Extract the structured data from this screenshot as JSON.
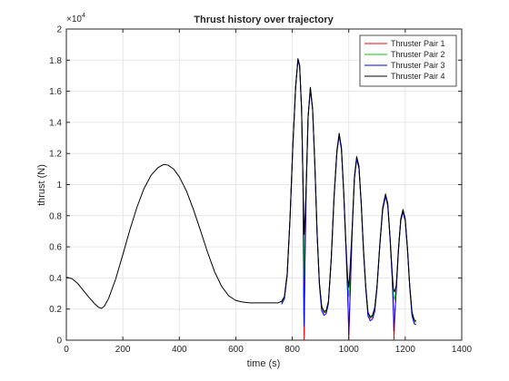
{
  "chart_data": {
    "type": "line",
    "title": "Thrust history over trajectory",
    "xlabel": "time (s)",
    "ylabel": "thrust (N)",
    "y_exponent_label": "×10",
    "y_exponent_power": "4",
    "xlim": [
      0,
      1400
    ],
    "ylim": [
      0,
      20000
    ],
    "x_ticks": [
      0,
      200,
      400,
      600,
      800,
      1000,
      1200,
      1400
    ],
    "x_tick_labels": [
      "0",
      "200",
      "400",
      "600",
      "800",
      "1000",
      "1200",
      "1400"
    ],
    "y_ticks": [
      0,
      2000,
      4000,
      6000,
      8000,
      10000,
      12000,
      14000,
      16000,
      18000,
      20000
    ],
    "y_tick_labels": [
      "0",
      "0.2",
      "0.4",
      "0.6",
      "0.8",
      "1",
      "1.2",
      "1.4",
      "1.6",
      "1.8",
      "2"
    ],
    "grid": true,
    "legend_position": "top-right",
    "series": [
      {
        "name": "Thruster Pair 1",
        "color": "#ff0000",
        "points": [
          [
            762,
            2400
          ],
          [
            772,
            2700
          ],
          [
            782,
            4200
          ],
          [
            792,
            7800
          ],
          [
            802,
            12500
          ],
          [
            812,
            16300
          ],
          [
            820,
            18000
          ],
          [
            826,
            17600
          ],
          [
            833,
            14800
          ],
          [
            838,
            10000
          ],
          [
            840,
            5000
          ],
          [
            841,
            1600
          ],
          [
            842,
            0
          ],
          [
            843,
            1600
          ],
          [
            845,
            5000
          ],
          [
            849,
            9500
          ],
          [
            856,
            14300
          ],
          [
            864,
            16200
          ],
          [
            872,
            14800
          ],
          [
            880,
            11200
          ],
          [
            888,
            6800
          ],
          [
            896,
            3600
          ],
          [
            904,
            2100
          ],
          [
            912,
            1750
          ],
          [
            920,
            1800
          ],
          [
            928,
            2400
          ],
          [
            938,
            5200
          ],
          [
            948,
            9200
          ],
          [
            958,
            12100
          ],
          [
            966,
            13200
          ],
          [
            974,
            12300
          ],
          [
            982,
            9500
          ],
          [
            990,
            6000
          ],
          [
            996,
            3200
          ],
          [
            999,
            1200
          ],
          [
            1000,
            0
          ],
          [
            1002,
            1200
          ],
          [
            1006,
            3600
          ],
          [
            1012,
            7000
          ],
          [
            1020,
            10400
          ],
          [
            1028,
            11700
          ],
          [
            1036,
            11100
          ],
          [
            1044,
            8800
          ],
          [
            1052,
            5800
          ],
          [
            1060,
            3400
          ],
          [
            1068,
            1700
          ],
          [
            1076,
            1400
          ],
          [
            1084,
            1500
          ],
          [
            1092,
            2000
          ],
          [
            1100,
            3400
          ],
          [
            1110,
            6100
          ],
          [
            1120,
            8400
          ],
          [
            1130,
            9300
          ],
          [
            1138,
            8700
          ],
          [
            1146,
            6600
          ],
          [
            1154,
            4000
          ],
          [
            1158,
            2000
          ],
          [
            1160,
            0
          ],
          [
            1163,
            1600
          ],
          [
            1168,
            3200
          ],
          [
            1176,
            5800
          ],
          [
            1184,
            7700
          ],
          [
            1192,
            8300
          ],
          [
            1200,
            7700
          ],
          [
            1208,
            5800
          ],
          [
            1216,
            3400
          ],
          [
            1224,
            1700
          ],
          [
            1232,
            1200
          ],
          [
            1238,
            1150
          ]
        ]
      },
      {
        "name": "Thruster Pair 2",
        "color": "#00cc00",
        "points": [
          [
            762,
            2450
          ],
          [
            772,
            2750
          ],
          [
            782,
            4250
          ],
          [
            792,
            7850
          ],
          [
            802,
            12500
          ],
          [
            812,
            16300
          ],
          [
            820,
            18050
          ],
          [
            826,
            17650
          ],
          [
            833,
            14850
          ],
          [
            838,
            10100
          ],
          [
            840,
            6000
          ],
          [
            842,
            4000
          ],
          [
            844,
            6500
          ],
          [
            849,
            9600
          ],
          [
            856,
            14350
          ],
          [
            864,
            16200
          ],
          [
            872,
            14850
          ],
          [
            880,
            11250
          ],
          [
            888,
            6850
          ],
          [
            896,
            3650
          ],
          [
            904,
            2150
          ],
          [
            912,
            1800
          ],
          [
            920,
            1850
          ],
          [
            928,
            2450
          ],
          [
            938,
            5250
          ],
          [
            948,
            9250
          ],
          [
            958,
            12150
          ],
          [
            966,
            13250
          ],
          [
            974,
            12350
          ],
          [
            982,
            9550
          ],
          [
            990,
            6100
          ],
          [
            996,
            3600
          ],
          [
            1000,
            2800
          ],
          [
            1004,
            3900
          ],
          [
            1012,
            7100
          ],
          [
            1020,
            10450
          ],
          [
            1028,
            11750
          ],
          [
            1036,
            11150
          ],
          [
            1044,
            8850
          ],
          [
            1052,
            5850
          ],
          [
            1060,
            3450
          ],
          [
            1068,
            1750
          ],
          [
            1076,
            1450
          ],
          [
            1084,
            1550
          ],
          [
            1092,
            2050
          ],
          [
            1100,
            3450
          ],
          [
            1110,
            6150
          ],
          [
            1120,
            8450
          ],
          [
            1130,
            9350
          ],
          [
            1138,
            8750
          ],
          [
            1146,
            6650
          ],
          [
            1154,
            4100
          ],
          [
            1158,
            2900
          ],
          [
            1162,
            2600
          ],
          [
            1168,
            3300
          ],
          [
            1176,
            5850
          ],
          [
            1184,
            7750
          ],
          [
            1192,
            8350
          ],
          [
            1200,
            7750
          ],
          [
            1208,
            5850
          ],
          [
            1216,
            3450
          ],
          [
            1224,
            1750
          ],
          [
            1232,
            1250
          ],
          [
            1238,
            1200
          ]
        ]
      },
      {
        "name": "Thruster Pair 3",
        "color": "#0000ff",
        "points": [
          [
            762,
            2300
          ],
          [
            772,
            2650
          ],
          [
            782,
            4150
          ],
          [
            792,
            7750
          ],
          [
            802,
            12450
          ],
          [
            812,
            16250
          ],
          [
            820,
            18000
          ],
          [
            826,
            17600
          ],
          [
            833,
            14800
          ],
          [
            838,
            9900
          ],
          [
            840,
            4500
          ],
          [
            841,
            2000
          ],
          [
            842,
            900
          ],
          [
            843,
            2200
          ],
          [
            845,
            5200
          ],
          [
            849,
            9500
          ],
          [
            856,
            14300
          ],
          [
            864,
            16150
          ],
          [
            872,
            14800
          ],
          [
            880,
            11150
          ],
          [
            888,
            6750
          ],
          [
            896,
            3550
          ],
          [
            904,
            1900
          ],
          [
            912,
            1600
          ],
          [
            920,
            1700
          ],
          [
            928,
            2350
          ],
          [
            938,
            5150
          ],
          [
            948,
            9150
          ],
          [
            958,
            12050
          ],
          [
            966,
            13150
          ],
          [
            974,
            12250
          ],
          [
            982,
            9450
          ],
          [
            990,
            5900
          ],
          [
            996,
            3000
          ],
          [
            999,
            1200
          ],
          [
            1000,
            300
          ],
          [
            1002,
            1400
          ],
          [
            1006,
            3500
          ],
          [
            1012,
            6950
          ],
          [
            1020,
            10350
          ],
          [
            1028,
            11650
          ],
          [
            1036,
            11050
          ],
          [
            1044,
            8750
          ],
          [
            1052,
            5750
          ],
          [
            1060,
            3350
          ],
          [
            1068,
            1550
          ],
          [
            1076,
            1250
          ],
          [
            1084,
            1350
          ],
          [
            1092,
            1850
          ],
          [
            1100,
            3350
          ],
          [
            1110,
            6050
          ],
          [
            1120,
            8350
          ],
          [
            1130,
            9250
          ],
          [
            1138,
            8650
          ],
          [
            1146,
            6550
          ],
          [
            1154,
            3900
          ],
          [
            1158,
            1800
          ],
          [
            1160,
            600
          ],
          [
            1163,
            1700
          ],
          [
            1168,
            3150
          ],
          [
            1176,
            5750
          ],
          [
            1184,
            7650
          ],
          [
            1192,
            8250
          ],
          [
            1200,
            7650
          ],
          [
            1208,
            5750
          ],
          [
            1216,
            3350
          ],
          [
            1224,
            1550
          ],
          [
            1232,
            1050
          ],
          [
            1238,
            1000
          ]
        ]
      },
      {
        "name": "Thruster Pair 4",
        "color": "#000000",
        "points": [
          [
            0,
            4050
          ],
          [
            20,
            3950
          ],
          [
            40,
            3650
          ],
          [
            60,
            3200
          ],
          [
            80,
            2750
          ],
          [
            100,
            2350
          ],
          [
            115,
            2100
          ],
          [
            125,
            2050
          ],
          [
            135,
            2200
          ],
          [
            150,
            2700
          ],
          [
            175,
            3950
          ],
          [
            200,
            5500
          ],
          [
            225,
            7100
          ],
          [
            250,
            8550
          ],
          [
            275,
            9750
          ],
          [
            300,
            10600
          ],
          [
            325,
            11100
          ],
          [
            345,
            11300
          ],
          [
            360,
            11250
          ],
          [
            380,
            11000
          ],
          [
            400,
            10500
          ],
          [
            425,
            9600
          ],
          [
            450,
            8400
          ],
          [
            475,
            7050
          ],
          [
            500,
            5650
          ],
          [
            525,
            4400
          ],
          [
            550,
            3450
          ],
          [
            575,
            2850
          ],
          [
            600,
            2550
          ],
          [
            625,
            2450
          ],
          [
            650,
            2400
          ],
          [
            680,
            2400
          ],
          [
            700,
            2400
          ],
          [
            730,
            2400
          ],
          [
            750,
            2400
          ],
          [
            762,
            2500
          ],
          [
            772,
            2800
          ],
          [
            782,
            4300
          ],
          [
            792,
            7900
          ],
          [
            802,
            12550
          ],
          [
            812,
            16350
          ],
          [
            820,
            18100
          ],
          [
            826,
            17700
          ],
          [
            833,
            14900
          ],
          [
            838,
            10200
          ],
          [
            842,
            6800
          ],
          [
            846,
            8200
          ],
          [
            850,
            10400
          ],
          [
            856,
            14400
          ],
          [
            864,
            16250
          ],
          [
            872,
            14900
          ],
          [
            880,
            11300
          ],
          [
            888,
            6900
          ],
          [
            896,
            3700
          ],
          [
            904,
            2200
          ],
          [
            912,
            1850
          ],
          [
            920,
            1900
          ],
          [
            928,
            2500
          ],
          [
            938,
            5300
          ],
          [
            948,
            9300
          ],
          [
            958,
            12200
          ],
          [
            966,
            13300
          ],
          [
            974,
            12400
          ],
          [
            982,
            9600
          ],
          [
            990,
            6200
          ],
          [
            996,
            4000
          ],
          [
            1000,
            3400
          ],
          [
            1004,
            4400
          ],
          [
            1012,
            7200
          ],
          [
            1020,
            10500
          ],
          [
            1028,
            11800
          ],
          [
            1036,
            11200
          ],
          [
            1044,
            8900
          ],
          [
            1052,
            5900
          ],
          [
            1060,
            3500
          ],
          [
            1068,
            1800
          ],
          [
            1076,
            1500
          ],
          [
            1084,
            1600
          ],
          [
            1092,
            2100
          ],
          [
            1100,
            3500
          ],
          [
            1110,
            6200
          ],
          [
            1120,
            8500
          ],
          [
            1130,
            9400
          ],
          [
            1138,
            8800
          ],
          [
            1146,
            6700
          ],
          [
            1154,
            4300
          ],
          [
            1158,
            3300
          ],
          [
            1162,
            3100
          ],
          [
            1168,
            3500
          ],
          [
            1176,
            5900
          ],
          [
            1184,
            7800
          ],
          [
            1192,
            8400
          ],
          [
            1200,
            7800
          ],
          [
            1208,
            5900
          ],
          [
            1216,
            3500
          ],
          [
            1224,
            1800
          ],
          [
            1232,
            1300
          ],
          [
            1238,
            1250
          ]
        ]
      }
    ]
  }
}
